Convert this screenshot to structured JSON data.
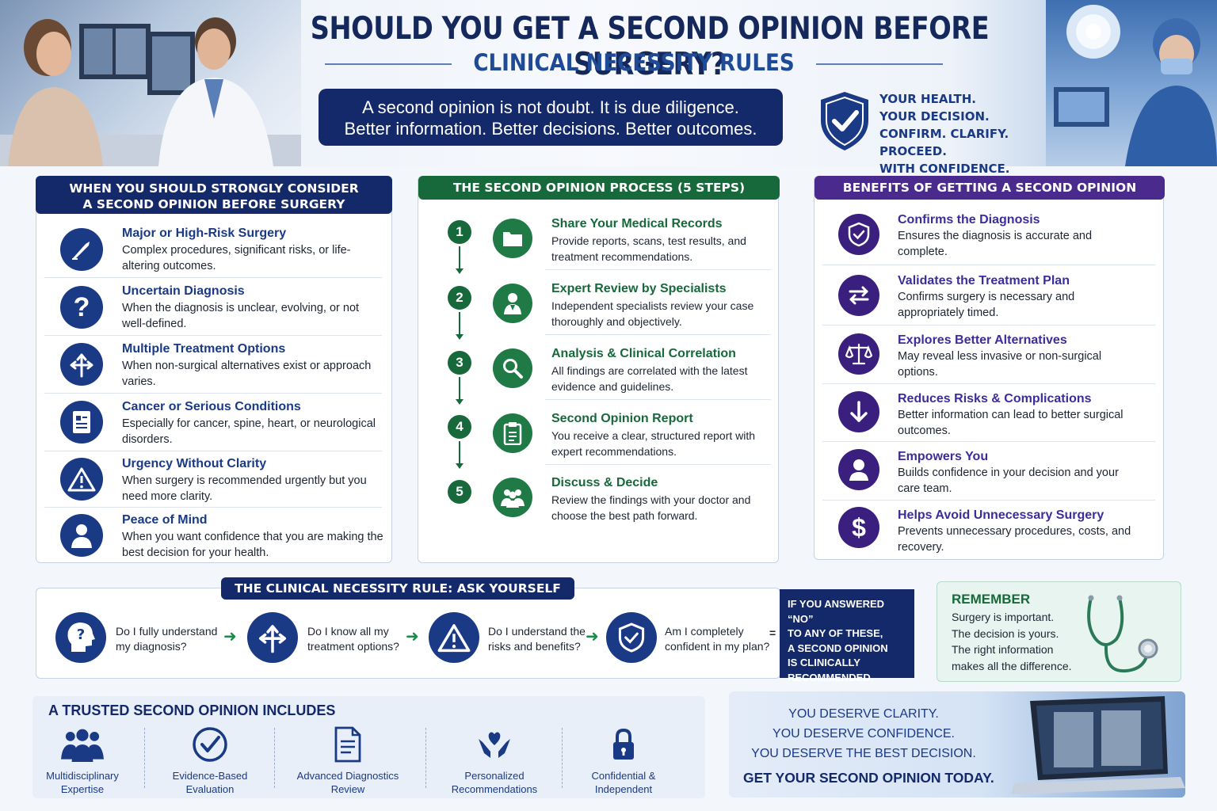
{
  "header": {
    "title": "SHOULD YOU GET A SECOND OPINION BEFORE SURGERY?",
    "subtitle": "CLINICAL NECESSITY RULES",
    "quote_line1": "A second opinion is not doubt. It is due diligence.",
    "quote_line2": "Better information. Better decisions. Better outcomes.",
    "health_lines": [
      "YOUR HEALTH.",
      "YOUR DECISION.",
      "CONFIRM. CLARIFY. PROCEED.",
      "WITH CONFIDENCE."
    ]
  },
  "consider": {
    "heading_line1": "WHEN YOU SHOULD STRONGLY CONSIDER",
    "heading_line2": "A SECOND OPINION BEFORE SURGERY",
    "items": [
      {
        "title": "Major or High-Risk Surgery",
        "desc": "Complex procedures, significant risks, or life-altering outcomes.",
        "icon": "scalpel-icon"
      },
      {
        "title": "Uncertain Diagnosis",
        "desc": "When the diagnosis is unclear, evolving, or not well-defined.",
        "icon": "question-icon"
      },
      {
        "title": "Multiple Treatment Options",
        "desc": "When non-surgical alternatives exist or approach varies.",
        "icon": "split-arrows-icon"
      },
      {
        "title": "Cancer or Serious Conditions",
        "desc": "Especially for cancer, spine, heart, or neurological disorders.",
        "icon": "medical-report-icon"
      },
      {
        "title": "Urgency Without Clarity",
        "desc": "When surgery is recommended urgently but you need more clarity.",
        "icon": "warning-icon"
      },
      {
        "title": "Peace of Mind",
        "desc": "When you want confidence that you are making the best decision for your health.",
        "icon": "patient-icon"
      }
    ]
  },
  "process": {
    "heading": "THE SECOND OPINION PROCESS (5 STEPS)",
    "steps": [
      {
        "num": "1",
        "title": "Share Your Medical Records",
        "desc": "Provide reports, scans, test results, and treatment recommendations.",
        "icon": "folder-icon"
      },
      {
        "num": "2",
        "title": "Expert Review by Specialists",
        "desc": "Independent specialists review your case thoroughly and objectively.",
        "icon": "doctor-icon"
      },
      {
        "num": "3",
        "title": "Analysis & Clinical Correlation",
        "desc": "All findings are correlated with the latest evidence and guidelines.",
        "icon": "magnifier-icon"
      },
      {
        "num": "4",
        "title": "Second Opinion Report",
        "desc": "You receive a clear, structured report with expert recommendations.",
        "icon": "clipboard-icon"
      },
      {
        "num": "5",
        "title": "Discuss & Decide",
        "desc": "Review the findings with your doctor and choose the best path forward.",
        "icon": "team-icon"
      }
    ]
  },
  "benefits": {
    "heading": "BENEFITS OF GETTING A SECOND OPINION",
    "items": [
      {
        "title": "Confirms the Diagnosis",
        "desc": "Ensures the diagnosis is accurate and complete.",
        "icon": "shield-check-icon"
      },
      {
        "title": "Validates the Treatment Plan",
        "desc": "Confirms surgery is necessary and appropriately timed.",
        "icon": "swap-arrows-icon"
      },
      {
        "title": "Explores Better Alternatives",
        "desc": "May reveal less invasive or non-surgical options.",
        "icon": "scales-icon"
      },
      {
        "title": "Reduces Risks & Complications",
        "desc": "Better information can lead to better surgical outcomes.",
        "icon": "down-arrow-icon"
      },
      {
        "title": "Empowers You",
        "desc": "Builds confidence in your decision and your care team.",
        "icon": "person-icon"
      },
      {
        "title": "Helps Avoid Unnecessary Surgery",
        "desc": "Prevents unnecessary procedures, costs, and recovery.",
        "icon": "dollar-icon"
      }
    ]
  },
  "rule": {
    "heading": "THE CLINICAL NECESSITY RULE: ASK YOURSELF",
    "questions": [
      {
        "line1": "Do I fully understand",
        "line2": "my diagnosis?",
        "icon": "head-question-icon"
      },
      {
        "line1": "Do I know all my",
        "line2": "treatment options?",
        "icon": "split-arrows-icon"
      },
      {
        "line1": "Do I understand the",
        "line2": "risks and benefits?",
        "icon": "warning-icon"
      },
      {
        "line1": "Am I completely",
        "line2": "confident in my plan?",
        "icon": "shield-check-icon"
      }
    ],
    "arrow": "➜",
    "equals": "=",
    "answer_lines": [
      "IF YOU ANSWERED “NO”",
      "TO ANY OF THESE,",
      "A SECOND OPINION",
      "IS CLINICALLY",
      "RECOMMENDED."
    ]
  },
  "remember": {
    "title": "REMEMBER",
    "lines": [
      "Surgery is important.",
      "The decision is yours.",
      "The right information",
      "makes all the difference."
    ]
  },
  "trusted": {
    "title": "A TRUSTED SECOND OPINION INCLUDES",
    "items": [
      {
        "line1": "Multidisciplinary",
        "line2": "Expertise",
        "icon": "team-icon"
      },
      {
        "line1": "Evidence-Based",
        "line2": "Evaluation",
        "icon": "check-circle-icon"
      },
      {
        "line1": "Advanced Diagnostics",
        "line2": "Review",
        "icon": "document-icon"
      },
      {
        "line1": "Personalized",
        "line2": "Recommendations",
        "icon": "heart-hands-icon"
      },
      {
        "line1": "Confidential &",
        "line2": "Independent",
        "icon": "lock-icon"
      }
    ]
  },
  "closing": {
    "lines": [
      "YOU DESERVE CLARITY.",
      "YOU DESERVE CONFIDENCE.",
      "YOU DESERVE THE BEST DECISION."
    ],
    "cta": "GET YOUR SECOND OPINION TODAY."
  },
  "colors": {
    "navy": "#14296a",
    "green": "#17693b",
    "purple": "#4a2a8c",
    "title_blue": "#14285c"
  }
}
